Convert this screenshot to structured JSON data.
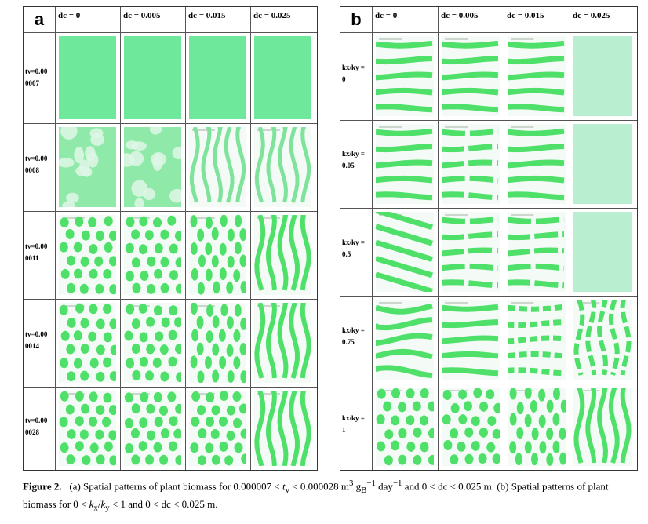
{
  "figure_number": "Figure 2.",
  "caption": {
    "p1": "(a) Spatial patterns of plant biomass for 0.000007 <",
    "v1": "t",
    "v1sub": "v",
    "p2": "< 0.000028 m",
    "exp3": "3",
    "p3": "g",
    "gsub": "B",
    "gsup": "−1",
    "p4": "day",
    "daysup": "−1",
    "p5": "and 0 < dc < 0.025 m. (b) Spatial patterns of plant biomass for 0 <",
    "k1": "k",
    "k1sub": "x",
    "slash": "/",
    "k2": "k",
    "k2sub": "y",
    "p6": "< 1 and 0 < dc < 0.025 m."
  },
  "panels": [
    {
      "letter": "a",
      "columns": [
        "dc = 0",
        "dc = 0.005",
        "dc = 0.015",
        "dc = 0.025"
      ],
      "rows": [
        {
          "label": "tv=0.00\n0007",
          "patterns": [
            "uniform",
            "uniform",
            "uniform",
            "uniform"
          ]
        },
        {
          "label": "tv=0.00\n0008",
          "patterns": [
            "blobs",
            "blobs",
            "vstripes-faint",
            "vstripes-faint"
          ]
        },
        {
          "label": "tv=0.00\n0011",
          "patterns": [
            "spots",
            "spots",
            "spots-vertical",
            "vstripes"
          ]
        },
        {
          "label": "tv=0.00\n0014",
          "patterns": [
            "spots",
            "spots",
            "spots-vertical",
            "vstripes"
          ]
        },
        {
          "label": "tv=0.00\n0028",
          "patterns": [
            "spots",
            "spots",
            "spots",
            "vstripes"
          ]
        }
      ]
    },
    {
      "letter": "b",
      "columns": [
        "dc = 0",
        "dc = 0.005",
        "dc = 0.015",
        "dc = 0.025"
      ],
      "rows": [
        {
          "label": "kx/ky =\n0",
          "patterns": [
            "hstripes",
            "hstripes",
            "hstripes",
            "faint"
          ]
        },
        {
          "label": "kx/ky =\n0.05",
          "patterns": [
            "hstripes",
            "hstripes-broken",
            "hstripes",
            "faint"
          ]
        },
        {
          "label": "kx/ky =\n0.5",
          "patterns": [
            "diagstripes",
            "hstripes-broken",
            "hstripes-broken",
            "faint"
          ]
        },
        {
          "label": "kx/ky =\n0.75",
          "patterns": [
            "hstripes-wavy",
            "hstripes",
            "dashes",
            "vdashes"
          ]
        },
        {
          "label": "kx/ky =\n1",
          "patterns": [
            "spots",
            "spots",
            "spots-vertical",
            "vstripes"
          ]
        }
      ]
    }
  ],
  "colors": {
    "biomass": "#4fe06a",
    "uniform": "#6ee89a",
    "faint": "#b9eed0",
    "background": "#f4fbf6"
  }
}
